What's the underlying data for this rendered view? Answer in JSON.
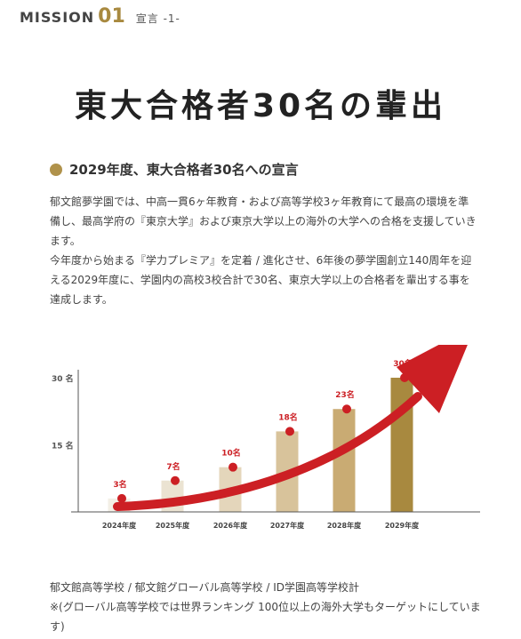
{
  "header": {
    "mission_word": "MISSION",
    "mission_number": "01",
    "subtitle": "宣言 -1-"
  },
  "title": "東大合格者30名の輩出",
  "subheading": "2029年度、東大合格者30名への宣言",
  "body": [
    "郁文館夢学園では、中高一貫6ヶ年教育・および高等学校3ヶ年教育にて最高の環境を準備し、最高学府の『東京大学』および東京大学以上の海外の大学への合格を支援していきます。",
    "今年度から始まる『学力プレミア』を定着 / 進化させ、6年後の夢学園創立140周年を迎える2029年度に、学園内の高校3校合計で30名、東京大学以上の合格者を輩出する事を達成します。"
  ],
  "chart_data": {
    "type": "bar",
    "categories": [
      "2024年度",
      "2025年度",
      "2026年度",
      "2027年度",
      "2028年度",
      "2029年度"
    ],
    "values": [
      3,
      7,
      10,
      18,
      23,
      30
    ],
    "value_labels": [
      "3名",
      "7名",
      "10名",
      "18名",
      "23名",
      "30名"
    ],
    "yticks": [
      {
        "value": 15,
        "label": "15 名"
      },
      {
        "value": 30,
        "label": "30 名"
      }
    ],
    "ylim": [
      0,
      30
    ],
    "bar_colors": [
      "#f3efe6",
      "#ebe3d2",
      "#e4d6bb",
      "#d8c39b",
      "#c9ab73",
      "#a8893f"
    ],
    "marker_color": "#cc1f24",
    "arrow_color": "#cc1f24",
    "grid": false
  },
  "footnote": [
    "郁文館高等学校 / 郁文館グローバル高等学校 / ID学園高等学校計",
    "※(グローバル高等学校では世界ランキング 100位以上の海外大学もターゲットにしています)"
  ]
}
